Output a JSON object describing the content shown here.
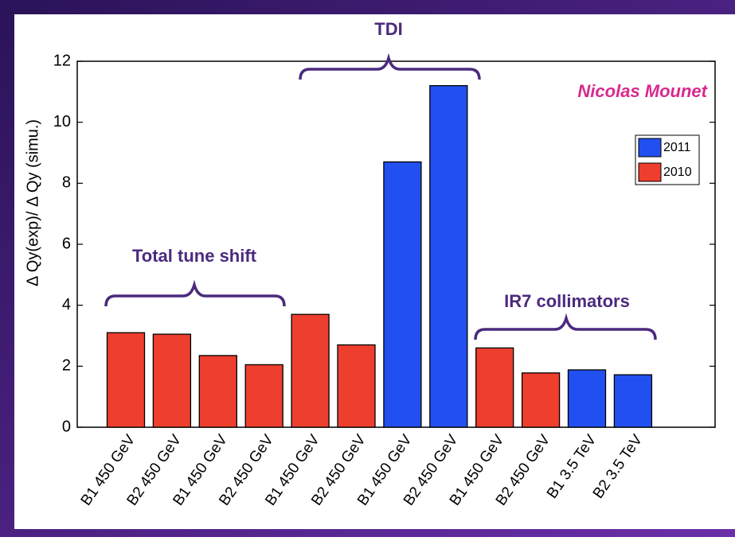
{
  "chart_data": {
    "type": "bar",
    "y_label": "Δ Qy(exp)/ Δ Qy (simu.)",
    "categories": [
      "B1 450 GeV",
      "B2 450 GeV",
      "B1 450 GeV",
      "B2 450 GeV",
      "B1 450 GeV",
      "B2 450 GeV",
      "B1 450 GeV",
      "B2 450 GeV",
      "B1 450 GeV",
      "B2 450 GeV",
      "B1 3.5 TeV",
      "B2 3.5 TeV"
    ],
    "series": [
      {
        "name": "2011",
        "color": "#2250f0",
        "values": [
          null,
          null,
          null,
          null,
          null,
          null,
          8.7,
          11.2,
          null,
          null,
          1.88,
          1.72
        ]
      },
      {
        "name": "2010",
        "color": "#ee3e2e",
        "values": [
          3.1,
          3.05,
          2.35,
          2.05,
          3.7,
          2.7,
          null,
          null,
          2.6,
          1.78,
          null,
          null
        ]
      }
    ],
    "ylim": [
      0,
      12
    ],
    "yticks": [
      0,
      2,
      4,
      6,
      8,
      10,
      12
    ],
    "legend": "upper right",
    "annotations": [
      "TDI",
      "Nicolas Mounet",
      "Total tune shift",
      "IR7 collimators"
    ]
  }
}
